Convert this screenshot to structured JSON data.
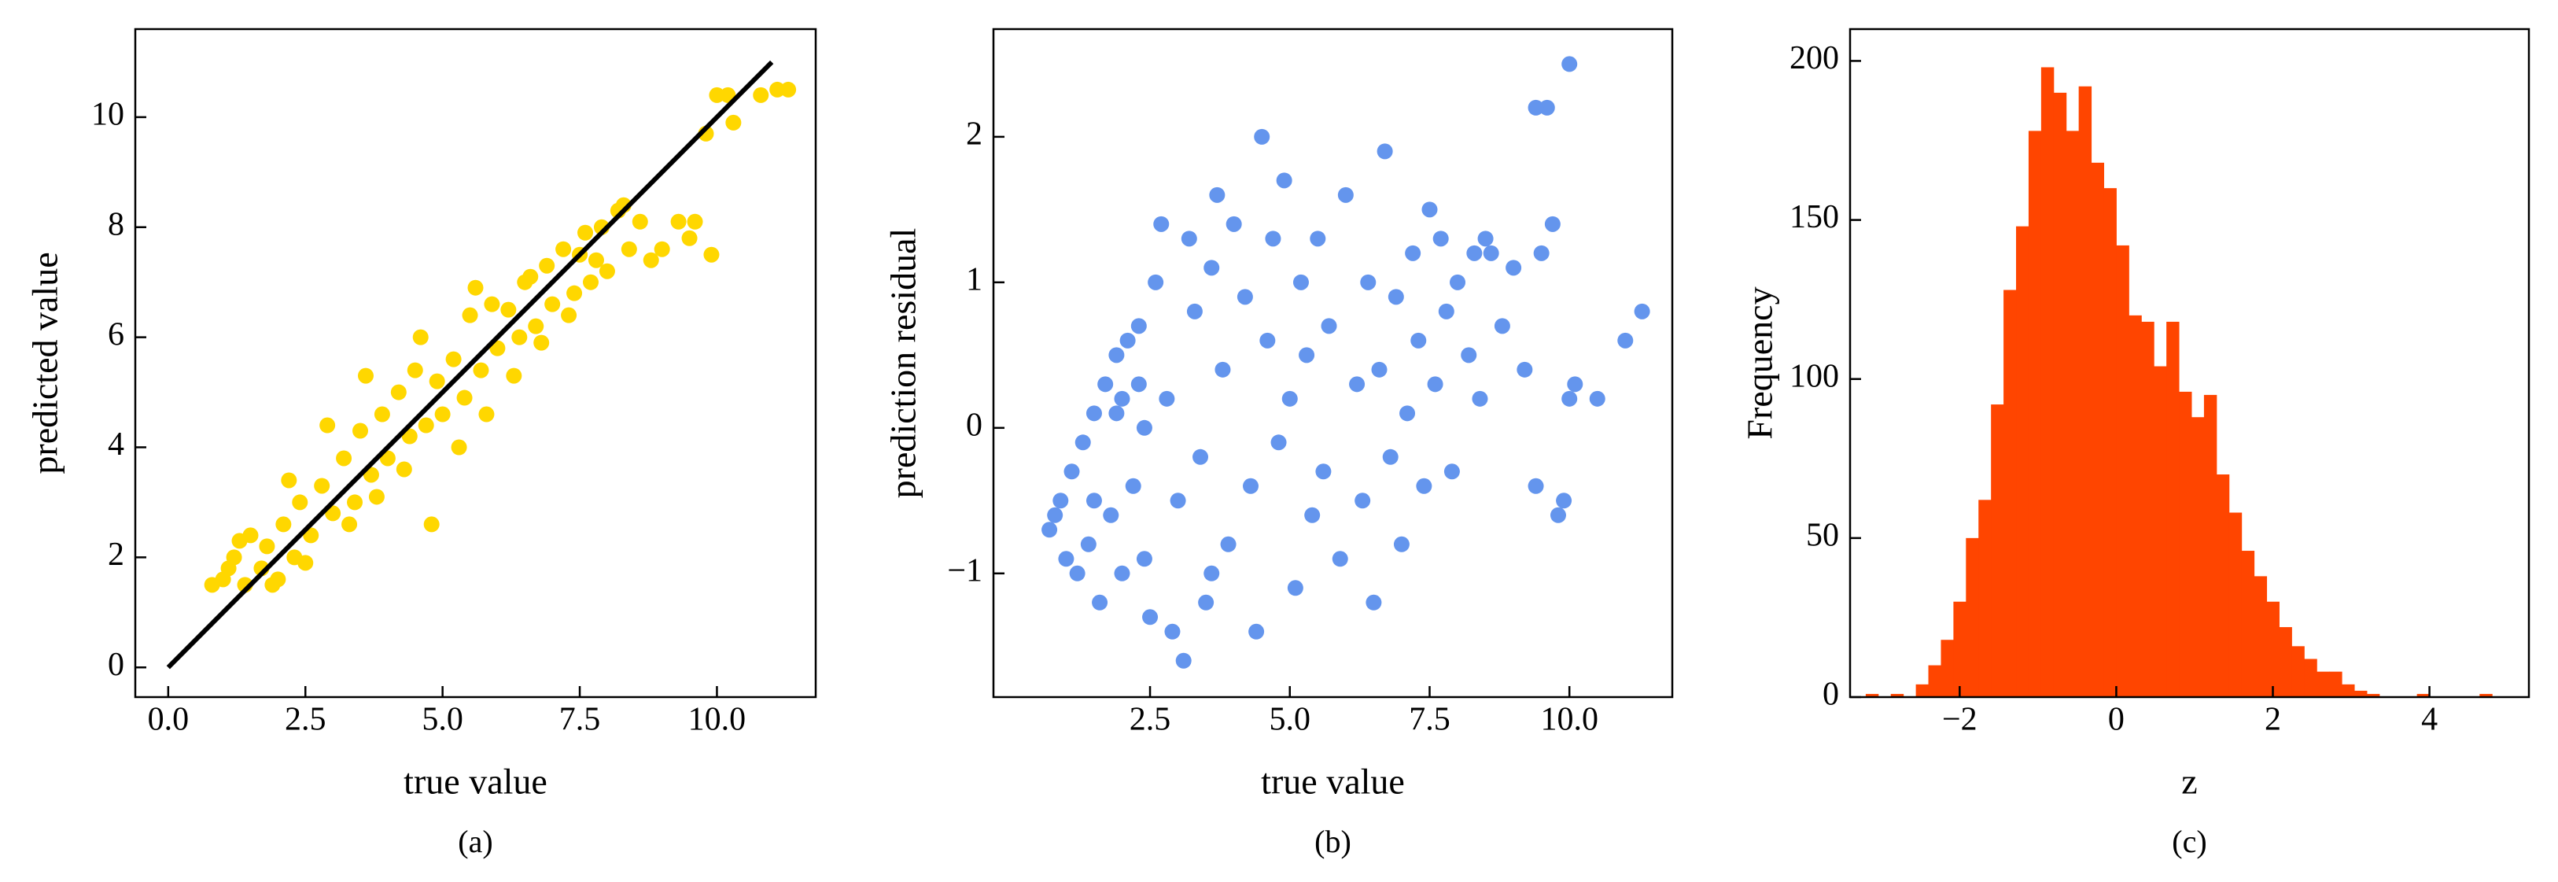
{
  "chart_data": [
    {
      "type": "scatter",
      "xlabel": "true value",
      "ylabel": "predicted value",
      "caption": "(a)",
      "xlim": [
        -0.6,
        11.8
      ],
      "ylim": [
        -0.54,
        11.6
      ],
      "xticks": [
        {
          "value": 0,
          "label": "0.0"
        },
        {
          "value": 2.5,
          "label": "2.5"
        },
        {
          "value": 5,
          "label": "5.0"
        },
        {
          "value": 7.5,
          "label": "7.5"
        },
        {
          "value": 10,
          "label": "10.0"
        }
      ],
      "yticks": [
        0,
        2,
        4,
        6,
        8,
        10
      ],
      "points": {
        "color": "#ffd700",
        "x": [
          0.8,
          1.0,
          1.2,
          1.4,
          1.5,
          1.7,
          1.8,
          2.0,
          2.1,
          2.3,
          2.4,
          2.6,
          2.8,
          3.0,
          3.2,
          3.4,
          3.5,
          3.7,
          3.9,
          4.0,
          4.2,
          4.4,
          4.5,
          4.7,
          4.9,
          5.0,
          5.2,
          5.4,
          5.5,
          5.7,
          5.9,
          6.0,
          6.2,
          6.4,
          6.5,
          6.7,
          6.9,
          7.0,
          7.2,
          7.4,
          7.5,
          7.7,
          7.9,
          8.0,
          8.2,
          8.4,
          8.6,
          8.8,
          9.0,
          9.3,
          9.6,
          9.9,
          10.0,
          10.3,
          10.8,
          11.1,
          11.3,
          1.3,
          1.9,
          2.5,
          3.3,
          3.8,
          4.3,
          4.8,
          5.3,
          5.8,
          6.3,
          6.8,
          7.3,
          7.8,
          8.3,
          1.1,
          2.2,
          2.9,
          3.6,
          4.6,
          5.6,
          6.6,
          7.6,
          9.8,
          10.2,
          9.5
        ],
        "y": [
          1.5,
          1.6,
          2.0,
          1.5,
          2.4,
          1.8,
          2.2,
          1.6,
          2.6,
          2.0,
          3.0,
          2.4,
          3.3,
          2.8,
          3.8,
          3.0,
          4.3,
          3.5,
          4.6,
          3.8,
          5.0,
          4.2,
          5.4,
          4.4,
          5.2,
          4.6,
          5.6,
          4.9,
          6.4,
          5.4,
          6.6,
          5.8,
          6.5,
          6.0,
          7.0,
          6.2,
          7.3,
          6.6,
          7.6,
          6.8,
          7.5,
          7.0,
          8.0,
          7.2,
          8.3,
          7.6,
          8.1,
          7.4,
          7.6,
          8.1,
          8.1,
          7.5,
          10.4,
          9.9,
          10.4,
          10.5,
          10.5,
          2.3,
          1.5,
          1.9,
          2.6,
          3.1,
          3.6,
          2.6,
          4.0,
          4.6,
          5.3,
          5.9,
          6.4,
          7.4,
          8.4,
          1.8,
          3.4,
          4.4,
          5.3,
          6.0,
          6.9,
          7.1,
          7.9,
          9.7,
          10.4,
          7.8
        ]
      },
      "reference_line": {
        "color": "#000000",
        "x": [
          0,
          11
        ],
        "y": [
          0,
          11
        ]
      }
    },
    {
      "type": "scatter",
      "xlabel": "true value",
      "ylabel": "prediction residual",
      "caption": "(b)",
      "xlim": [
        -0.3,
        11.84
      ],
      "ylim": [
        -1.85,
        2.74
      ],
      "xticks": [
        {
          "value": 2.5,
          "label": "2.5"
        },
        {
          "value": 5,
          "label": "5.0"
        },
        {
          "value": 7.5,
          "label": "7.5"
        },
        {
          "value": 10,
          "label": "10.0"
        }
      ],
      "yticks": [
        {
          "value": -1,
          "label": "−1"
        },
        0,
        1,
        2
      ],
      "points": {
        "color": "#6495ed",
        "x": [
          0.7,
          0.9,
          1.1,
          1.3,
          1.5,
          1.7,
          1.9,
          2.1,
          2.3,
          1.0,
          1.4,
          1.8,
          2.2,
          1.2,
          1.6,
          2.0,
          2.4,
          1.9,
          2.3,
          0.8,
          2.6,
          2.7,
          2.8,
          3.0,
          3.1,
          3.2,
          3.3,
          3.4,
          3.5,
          3.6,
          3.7,
          3.8,
          3.9,
          4.0,
          4.2,
          4.3,
          4.4,
          4.5,
          4.6,
          4.7,
          4.8,
          4.9,
          5.0,
          5.1,
          5.2,
          5.3,
          5.4,
          5.5,
          5.6,
          5.7,
          5.9,
          6.0,
          6.2,
          6.3,
          6.4,
          6.5,
          6.6,
          6.7,
          6.8,
          6.9,
          7.0,
          7.1,
          7.2,
          7.3,
          7.4,
          7.5,
          7.6,
          7.7,
          7.8,
          7.9,
          8.0,
          8.2,
          8.3,
          8.4,
          8.6,
          8.8,
          9.0,
          9.2,
          9.4,
          9.5,
          9.6,
          9.7,
          9.8,
          9.9,
          10.0,
          10.1,
          10.0,
          10.5,
          11.0,
          11.3,
          9.4,
          8.5,
          1.5,
          2.0,
          2.4,
          2.9,
          3.6,
          2.5
        ],
        "y": [
          -0.7,
          -0.5,
          -0.3,
          -0.1,
          0.1,
          0.3,
          0.5,
          0.6,
          0.7,
          -0.9,
          -0.8,
          -0.6,
          -0.4,
          -1.0,
          -1.2,
          -1.0,
          -0.9,
          0.1,
          0.3,
          -0.6,
          1.0,
          1.4,
          0.2,
          -0.5,
          -1.6,
          1.3,
          0.8,
          -0.2,
          -1.2,
          1.1,
          1.6,
          0.4,
          -0.8,
          1.4,
          0.9,
          -0.4,
          -1.4,
          2.0,
          0.6,
          1.3,
          -0.1,
          1.7,
          0.2,
          -1.1,
          1.0,
          0.5,
          -0.6,
          1.3,
          -0.3,
          0.7,
          -0.9,
          1.6,
          0.3,
          -0.5,
          1.0,
          -1.2,
          0.4,
          1.9,
          -0.2,
          0.9,
          -0.8,
          0.1,
          1.2,
          0.6,
          -0.4,
          1.5,
          0.3,
          1.3,
          0.8,
          -0.3,
          1.0,
          0.5,
          1.2,
          0.2,
          1.2,
          0.7,
          1.1,
          0.4,
          -0.4,
          1.2,
          2.2,
          1.4,
          -0.6,
          -0.5,
          2.5,
          0.3,
          0.2,
          0.2,
          0.6,
          0.8,
          2.2,
          1.3,
          -0.5,
          0.2,
          0.0,
          -1.4,
          -1.0,
          -1.3
        ]
      }
    },
    {
      "type": "histogram",
      "xlabel": "z",
      "ylabel": "Frequency",
      "caption": "(c)",
      "color": "#ff4500",
      "xlim": [
        -3.4,
        5.27
      ],
      "ylim": [
        0,
        210
      ],
      "xticks": [
        {
          "value": -2,
          "label": "−2"
        },
        0,
        2,
        4
      ],
      "yticks": [
        0,
        50,
        100,
        150,
        200
      ],
      "bins": [
        -3.2,
        -3.04,
        -2.88,
        -2.72,
        -2.56,
        -2.4,
        -2.24,
        -2.08,
        -1.92,
        -1.76,
        -1.6,
        -1.44,
        -1.28,
        -1.12,
        -0.96,
        -0.8,
        -0.64,
        -0.48,
        -0.32,
        -0.16,
        0,
        0.16,
        0.32,
        0.48,
        0.64,
        0.8,
        0.96,
        1.12,
        1.28,
        1.44,
        1.6,
        1.76,
        1.92,
        2.08,
        2.24,
        2.4,
        2.56,
        2.72,
        2.88,
        3.04,
        3.2,
        3.36,
        3.52,
        3.68,
        3.84,
        4,
        4.16,
        4.32,
        4.48,
        4.64,
        4.8
      ],
      "counts": [
        1,
        0,
        1,
        0,
        4,
        10,
        18,
        30,
        50,
        62,
        92,
        128,
        148,
        178,
        198,
        190,
        178,
        192,
        168,
        160,
        142,
        120,
        118,
        104,
        118,
        96,
        88,
        95,
        70,
        58,
        46,
        38,
        30,
        22,
        16,
        12,
        8,
        8,
        4,
        2,
        1,
        0,
        0,
        0,
        1,
        0,
        0,
        0,
        0,
        1
      ]
    }
  ]
}
